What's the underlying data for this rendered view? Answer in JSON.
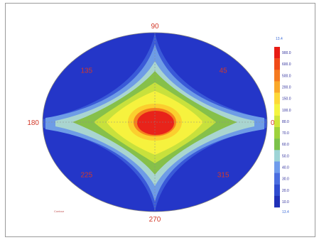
{
  "chart_data": {
    "type": "heatmap",
    "projection": "polar-elliptical",
    "title": "",
    "angle_ticks": [
      "90",
      "45",
      "0",
      "315",
      "270",
      "225",
      "180",
      "135"
    ],
    "angle_values_deg": [
      90,
      45,
      0,
      315,
      270,
      225,
      180,
      135
    ],
    "legend": {
      "placement": "right",
      "top_label": "13.4",
      "bottom_label": "13.4",
      "levels": [
        "900.0",
        "600.0",
        "500.0",
        "200.0",
        "150.0",
        "100.0",
        "80.0",
        "70.0",
        "60.0",
        "50.0",
        "40.0",
        "30.0",
        "20.0",
        "10.0"
      ],
      "colors": [
        "#e81c14",
        "#f04a18",
        "#f57a20",
        "#faa82a",
        "#fdd838",
        "#f4f440",
        "#cfe63a",
        "#9ed23c",
        "#7bc24a",
        "#9ed4d6",
        "#6f9cec",
        "#4a6ee0",
        "#2f4cd0",
        "#1f30b8"
      ]
    },
    "footer_note": "Contour"
  }
}
